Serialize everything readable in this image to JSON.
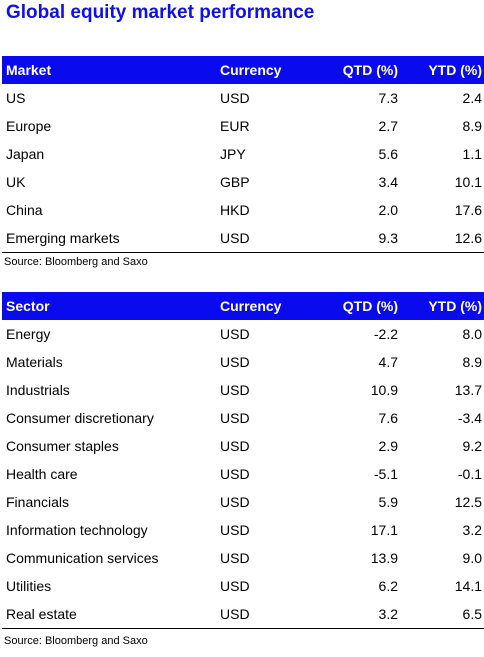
{
  "title": "Global equity market performance",
  "market_table": {
    "headers": [
      "Market",
      "Currency",
      "QTD (%)",
      "YTD (%)"
    ],
    "rows": [
      [
        "US",
        "USD",
        "7.3",
        "2.4"
      ],
      [
        "Europe",
        "EUR",
        "2.7",
        "8.9"
      ],
      [
        "Japan",
        "JPY",
        "5.6",
        "1.1"
      ],
      [
        "UK",
        "GBP",
        "3.4",
        "10.1"
      ],
      [
        "China",
        "HKD",
        "2.0",
        "17.6"
      ],
      [
        "Emerging markets",
        "USD",
        "9.3",
        "12.6"
      ]
    ],
    "source": "Source: Bloomberg and Saxo"
  },
  "sector_table": {
    "headers": [
      "Sector",
      "Currency",
      "QTD (%)",
      "YTD (%)"
    ],
    "rows": [
      [
        "Energy",
        "USD",
        "-2.2",
        "8.0"
      ],
      [
        "Materials",
        "USD",
        "4.7",
        "8.9"
      ],
      [
        "Industrials",
        "USD",
        "10.9",
        "13.7"
      ],
      [
        "Consumer discretionary",
        "USD",
        "7.6",
        "-3.4"
      ],
      [
        "Consumer staples",
        "USD",
        "2.9",
        "9.2"
      ],
      [
        "Health care",
        "USD",
        "-5.1",
        "-0.1"
      ],
      [
        "Financials",
        "USD",
        "5.9",
        "12.5"
      ],
      [
        "Information technology",
        "USD",
        "17.1",
        "3.2"
      ],
      [
        "Communication services",
        "USD",
        "13.9",
        "9.0"
      ],
      [
        "Utilities",
        "USD",
        "6.2",
        "14.1"
      ],
      [
        "Real estate",
        "USD",
        "3.2",
        "6.5"
      ]
    ],
    "source": "Source: Bloomberg and Saxo"
  },
  "colors": {
    "title": "#1010e8",
    "header_background": "#0a0aee",
    "header_text": "#ffffff"
  }
}
